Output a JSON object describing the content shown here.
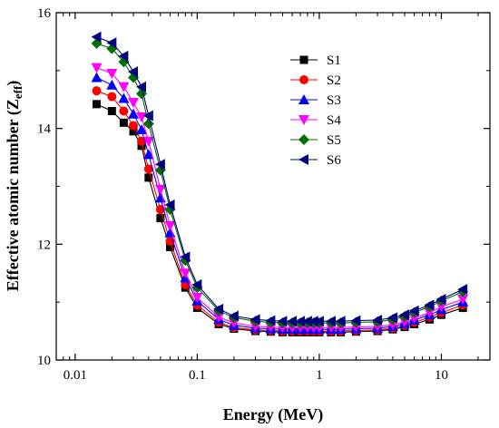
{
  "chart_data": {
    "type": "line",
    "title": "",
    "xlabel": "Energy (MeV)",
    "ylabel_main": "Effective atomic number (Z",
    "ylabel_sub": "eff",
    "ylabel_close": ")",
    "xscale": "log",
    "xlim": [
      0.007,
      25
    ],
    "ylim": [
      10,
      16
    ],
    "x_ticks": [
      0.01,
      0.1,
      1,
      10
    ],
    "x_tick_labels": [
      "0.01",
      "0.1",
      "1",
      "10"
    ],
    "y_ticks": [
      10,
      12,
      14,
      16
    ],
    "y_tick_labels": [
      "10",
      "12",
      "14",
      "16"
    ],
    "legend_position": "top-right",
    "x": [
      0.015,
      0.02,
      0.025,
      0.03,
      0.035,
      0.04,
      0.05,
      0.06,
      0.08,
      0.1,
      0.15,
      0.2,
      0.3,
      0.4,
      0.5,
      0.6,
      0.7,
      0.8,
      0.9,
      1.0,
      1.25,
      1.5,
      2.0,
      3.0,
      4.0,
      5.0,
      6.0,
      8.0,
      10.0,
      15.0
    ],
    "series": [
      {
        "name": "S1",
        "marker": "square",
        "color": "#000000",
        "values": [
          14.42,
          14.3,
          14.1,
          13.95,
          13.7,
          13.15,
          12.45,
          11.95,
          11.25,
          10.9,
          10.62,
          10.54,
          10.5,
          10.49,
          10.48,
          10.48,
          10.48,
          10.48,
          10.48,
          10.48,
          10.48,
          10.48,
          10.49,
          10.5,
          10.53,
          10.57,
          10.62,
          10.7,
          10.78,
          10.9
        ]
      },
      {
        "name": "S2",
        "marker": "circle",
        "color": "#ff0000",
        "values": [
          14.65,
          14.55,
          14.3,
          14.05,
          13.78,
          13.3,
          12.6,
          12.05,
          11.3,
          10.95,
          10.65,
          10.56,
          10.52,
          10.51,
          10.5,
          10.5,
          10.5,
          10.5,
          10.5,
          10.5,
          10.5,
          10.5,
          10.51,
          10.52,
          10.55,
          10.6,
          10.65,
          10.74,
          10.82,
          10.95
        ]
      },
      {
        "name": "S3",
        "marker": "triangle-up",
        "color": "#0000ff",
        "values": [
          14.88,
          14.75,
          14.52,
          14.25,
          13.98,
          13.55,
          12.8,
          12.2,
          11.42,
          11.02,
          10.7,
          10.6,
          10.55,
          10.54,
          10.53,
          10.53,
          10.53,
          10.53,
          10.53,
          10.53,
          10.53,
          10.53,
          10.54,
          10.55,
          10.58,
          10.63,
          10.69,
          10.78,
          10.87,
          11.0
        ]
      },
      {
        "name": "S4",
        "marker": "triangle-down",
        "color": "#ff00ff",
        "values": [
          15.05,
          14.95,
          14.72,
          14.45,
          14.2,
          13.78,
          12.95,
          12.32,
          11.5,
          11.08,
          10.74,
          10.64,
          10.58,
          10.57,
          10.56,
          10.56,
          10.56,
          10.56,
          10.56,
          10.56,
          10.56,
          10.56,
          10.57,
          10.58,
          10.61,
          10.66,
          10.72,
          10.82,
          10.92,
          11.05
        ]
      },
      {
        "name": "S5",
        "marker": "diamond",
        "color": "#007000",
        "values": [
          15.47,
          15.38,
          15.15,
          14.88,
          14.6,
          14.08,
          13.28,
          12.6,
          11.72,
          11.25,
          10.85,
          10.73,
          10.67,
          10.65,
          10.64,
          10.64,
          10.64,
          10.64,
          10.64,
          10.64,
          10.64,
          10.64,
          10.65,
          10.66,
          10.7,
          10.75,
          10.82,
          10.92,
          11.02,
          11.18
        ]
      },
      {
        "name": "S6",
        "marker": "triangle-left",
        "color": "#000080",
        "values": [
          15.58,
          15.48,
          15.25,
          14.98,
          14.72,
          14.22,
          13.38,
          12.68,
          11.78,
          11.3,
          10.88,
          10.76,
          10.7,
          10.68,
          10.67,
          10.67,
          10.67,
          10.67,
          10.67,
          10.67,
          10.67,
          10.67,
          10.68,
          10.69,
          10.73,
          10.78,
          10.85,
          10.95,
          11.05,
          11.22
        ]
      }
    ]
  }
}
